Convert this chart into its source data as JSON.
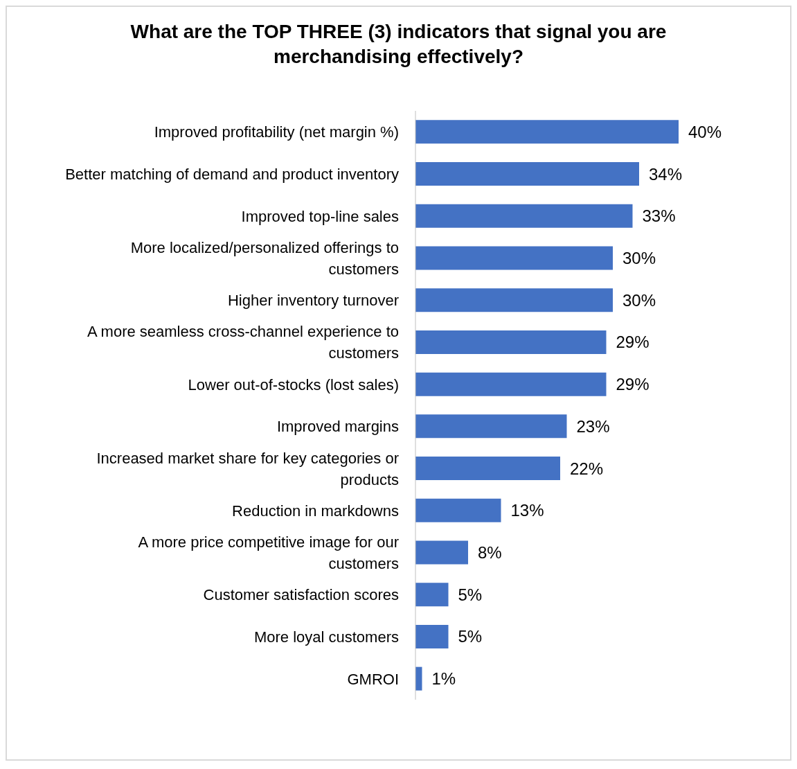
{
  "chart_data": {
    "type": "bar",
    "orientation": "horizontal",
    "title": "What are the TOP THREE (3) indicators that signal you are merchandising effectively?",
    "categories": [
      "Improved profitability (net margin %)",
      "Better matching of demand and product inventory",
      "Improved top-line sales",
      "More localized/personalized offerings to customers",
      "Higher inventory turnover",
      "A more seamless cross-channel experience to customers",
      "Lower out-of-stocks (lost sales)",
      "Improved margins",
      "Increased market share for key categories or products",
      "Reduction in markdowns",
      "A more price competitive image for our customers",
      "Customer satisfaction scores",
      "More loyal customers",
      "GMROI"
    ],
    "values": [
      40,
      34,
      33,
      30,
      30,
      29,
      29,
      23,
      22,
      13,
      8,
      5,
      5,
      1
    ],
    "value_labels": [
      "40%",
      "34%",
      "33%",
      "30%",
      "30%",
      "29%",
      "29%",
      "23%",
      "22%",
      "13%",
      "8%",
      "5%",
      "5%",
      "1%"
    ],
    "color": "#4472c4"
  }
}
